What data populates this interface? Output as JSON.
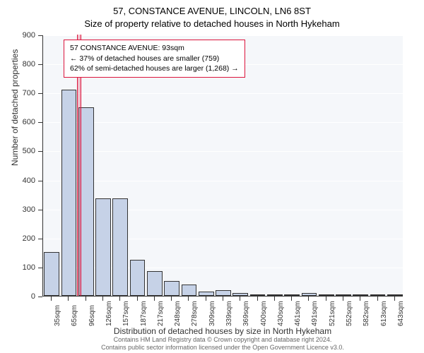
{
  "title": {
    "main": "57, CONSTANCE AVENUE, LINCOLN, LN6 8ST",
    "sub": "Size of property relative to detached houses in North Hykeham"
  },
  "chart": {
    "type": "histogram",
    "background_color": "#f5f7fa",
    "grid_color": "#ffffff",
    "bar_color": "#c6d2e7",
    "bar_border": "#333333",
    "highlight_color": "#dc143c",
    "ylim": [
      0,
      900
    ],
    "ytick_step": 100,
    "y_ticks": [
      0,
      100,
      200,
      300,
      400,
      500,
      600,
      700,
      800,
      900
    ],
    "x_labels": [
      "35sqm",
      "65sqm",
      "96sqm",
      "126sqm",
      "157sqm",
      "187sqm",
      "217sqm",
      "248sqm",
      "278sqm",
      "309sqm",
      "339sqm",
      "369sqm",
      "400sqm",
      "430sqm",
      "461sqm",
      "491sqm",
      "521sqm",
      "552sqm",
      "582sqm",
      "613sqm",
      "643sqm"
    ],
    "bars": [
      150,
      710,
      650,
      335,
      335,
      125,
      85,
      50,
      40,
      15,
      20,
      10,
      3,
      5,
      2,
      10,
      2,
      0,
      0,
      2,
      0
    ],
    "highlight_index": 2,
    "ylabel": "Number of detached properties",
    "xlabel": "Distribution of detached houses by size in North Hykeham",
    "label_fontsize": 12,
    "tick_fontsize": 11
  },
  "info_box": {
    "line1": "57 CONSTANCE AVENUE: 93sqm",
    "line2": "← 37% of detached houses are smaller (759)",
    "line3": "62% of semi-detached houses are larger (1,268) →"
  },
  "footer": {
    "line1": "Contains HM Land Registry data © Crown copyright and database right 2024.",
    "line2": "Contains public sector information licensed under the Open Government Licence v3.0."
  }
}
